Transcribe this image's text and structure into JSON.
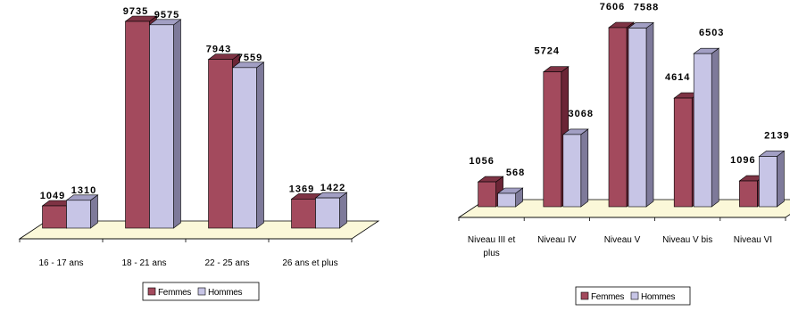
{
  "colors": {
    "femmes_front": "#a34a5d",
    "femmes_side": "#6b2536",
    "femmes_top": "#7e3344",
    "hommes_front": "#c7c5e6",
    "hommes_side": "#7e7a9a",
    "hommes_top": "#a29fc4",
    "floor": "#fbf8d9"
  },
  "chart_data": [
    {
      "type": "bar",
      "categories": [
        "16 - 17 ans",
        "18 - 21 ans",
        "22 - 25 ans",
        "26 ans et plus"
      ],
      "series": [
        {
          "name": "Femmes",
          "values": [
            1049,
            9735,
            7943,
            1369
          ]
        },
        {
          "name": "Hommes",
          "values": [
            1310,
            9575,
            7559,
            1422
          ]
        }
      ],
      "legend": [
        "Femmes",
        "Hommes"
      ],
      "legend_position": "bottom",
      "ylim": [
        0,
        10000
      ],
      "grid": false
    },
    {
      "type": "bar",
      "categories": [
        "Niveau III et plus",
        "Niveau IV",
        "Niveau V",
        "Niveau V bis",
        "Niveau VI"
      ],
      "series": [
        {
          "name": "Femmes",
          "values": [
            1056,
            5724,
            7606,
            4614,
            1096
          ]
        },
        {
          "name": "Hommes",
          "values": [
            568,
            3068,
            7588,
            6503,
            2139
          ]
        }
      ],
      "legend": [
        "Femmes",
        "Hommes"
      ],
      "legend_position": "bottom",
      "ylim": [
        0,
        8000
      ],
      "grid": false
    }
  ]
}
